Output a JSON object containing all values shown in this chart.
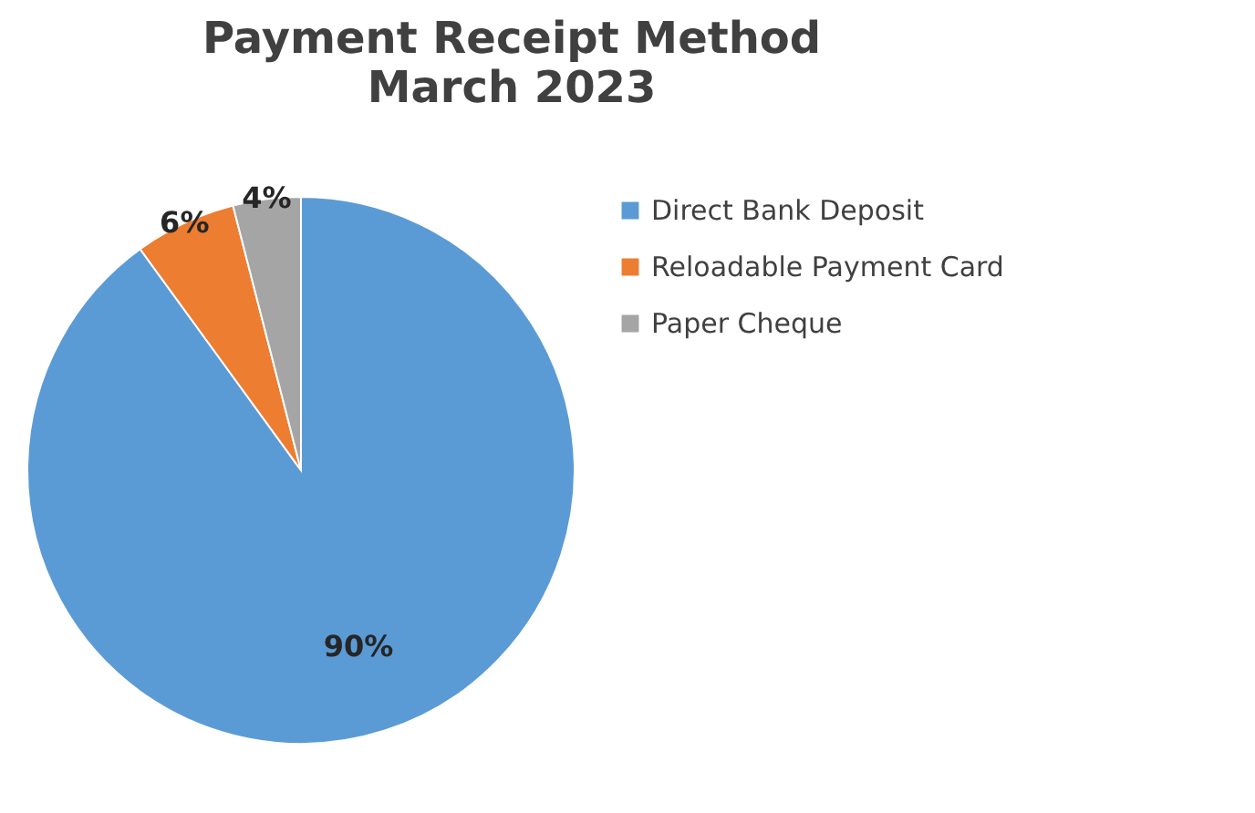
{
  "chart_data": {
    "type": "pie",
    "title": "Payment Receipt Method",
    "subtitle": "March 2023",
    "categories": [
      "Direct Bank Deposit",
      "Reloadable Payment Card",
      "Paper Cheque"
    ],
    "values": [
      90,
      6,
      4
    ],
    "colors": [
      "#5b9bd5",
      "#ed7d31",
      "#a5a5a5"
    ],
    "value_labels": [
      "90%",
      "6%",
      "4%"
    ],
    "legend": "right"
  }
}
